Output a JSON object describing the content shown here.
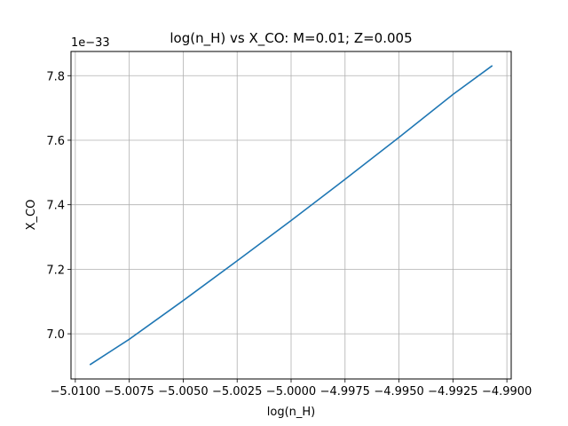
{
  "chart_data": {
    "type": "line",
    "title": "log(n_H) vs X_CO: M=0.01; Z=0.005",
    "xlabel": "log(n_H)",
    "ylabel": "X_CO",
    "y_offset_label": "1e−33",
    "xlim": [
      -5.0102,
      -4.9898
    ],
    "ylim": [
      6.86,
      7.875
    ],
    "x_ticks": [
      -5.01,
      -5.0075,
      -5.005,
      -5.0025,
      -5.0,
      -4.9975,
      -4.995,
      -4.9925,
      -4.99
    ],
    "x_tick_labels": [
      "−5.0100",
      "−5.0075",
      "−5.0050",
      "−5.0025",
      "−5.0000",
      "−4.9975",
      "−4.9950",
      "−4.9925",
      "−4.9900"
    ],
    "y_ticks": [
      7.0,
      7.2,
      7.4,
      7.6,
      7.8
    ],
    "y_tick_labels": [
      "7.0",
      "7.2",
      "7.4",
      "7.6",
      "7.8"
    ],
    "grid": true,
    "series": [
      {
        "color": "#1f77b4",
        "x": [
          -5.0093,
          -5.0075,
          -5.005,
          -5.0025,
          -5.0,
          -4.9975,
          -4.995,
          -4.9925,
          -4.9907
        ],
        "y": [
          6.905,
          6.983,
          7.103,
          7.226,
          7.351,
          7.479,
          7.609,
          7.742,
          7.83
        ]
      }
    ]
  }
}
